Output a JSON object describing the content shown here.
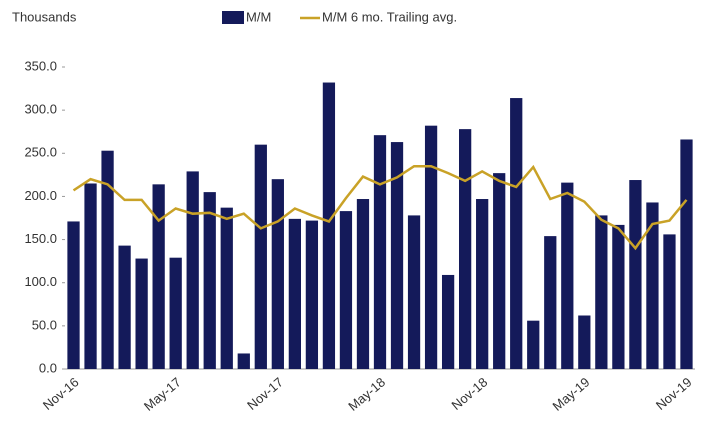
{
  "chart_data": {
    "type": "bar",
    "y_label": "Thousands",
    "categories": [
      "Nov-16",
      null,
      null,
      null,
      null,
      null,
      "May-17",
      null,
      null,
      null,
      null,
      null,
      "Nov-17",
      null,
      null,
      null,
      null,
      null,
      "May-18",
      null,
      null,
      null,
      null,
      null,
      "Nov-18",
      null,
      null,
      null,
      null,
      null,
      "May-19",
      null,
      null,
      null,
      null,
      null,
      "Nov-19"
    ],
    "series": [
      {
        "name": "M/M",
        "type": "bar",
        "color": "#141a5a",
        "values": [
          171,
          215,
          253,
          143,
          128,
          214,
          129,
          229,
          205,
          187,
          18,
          260,
          220,
          174,
          172,
          332,
          183,
          197,
          271,
          263,
          178,
          282,
          109,
          278,
          197,
          227,
          314,
          56,
          154,
          216,
          62,
          178,
          167,
          219,
          193,
          156,
          266
        ]
      },
      {
        "name": "M/M 6 mo. Trailing avg.",
        "type": "line",
        "color": "#c9a227",
        "values": [
          207,
          220,
          214,
          196,
          196,
          172,
          186,
          180,
          181,
          174,
          180,
          163,
          171,
          186,
          178,
          171,
          198,
          223,
          214,
          222,
          235,
          235,
          227,
          218,
          229,
          218,
          211,
          234,
          197,
          204,
          194,
          173,
          163,
          140,
          168,
          172,
          196
        ]
      }
    ],
    "ylim": [
      0,
      350
    ],
    "yticks": [
      {
        "value": 0,
        "label": "0.0"
      },
      {
        "value": 50,
        "label": "50.0"
      },
      {
        "value": 100,
        "label": "100.0"
      },
      {
        "value": 150,
        "label": "150.0"
      },
      {
        "value": 200,
        "label": "200.0"
      },
      {
        "value": 250,
        "label": "250.0"
      },
      {
        "value": 300,
        "label": "300.0"
      },
      {
        "value": 350,
        "label": "350.0"
      }
    ],
    "grid": false
  }
}
